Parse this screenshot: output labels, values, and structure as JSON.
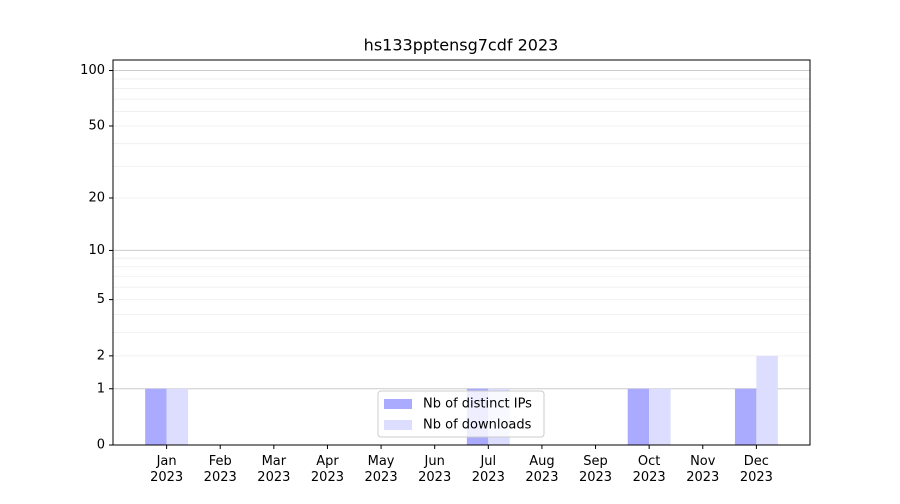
{
  "chart_data": {
    "type": "bar",
    "title": "hs133pptensg7cdf 2023",
    "categories": [
      "Jan\n2023",
      "Feb\n2023",
      "Mar\n2023",
      "Apr\n2023",
      "May\n2023",
      "Jun\n2023",
      "Jul\n2023",
      "Aug\n2023",
      "Sep\n2023",
      "Oct\n2023",
      "Nov\n2023",
      "Dec\n2023"
    ],
    "series": [
      {
        "name": "Nb of distinct IPs",
        "color": "#aaaaff",
        "values": [
          1,
          0,
          0,
          0,
          0,
          0,
          1,
          0,
          0,
          1,
          0,
          1
        ]
      },
      {
        "name": "Nb of downloads",
        "color": "#ddddff",
        "values": [
          1,
          0,
          0,
          0,
          0,
          0,
          1,
          0,
          0,
          1,
          0,
          2
        ]
      }
    ],
    "yscale": "log1p",
    "ylim": [
      0,
      114
    ],
    "yticks": [
      0,
      1,
      2,
      5,
      10,
      20,
      50,
      100
    ],
    "major_grid": [
      1,
      10,
      100
    ],
    "minor_grid": [
      2,
      3,
      4,
      5,
      6,
      7,
      8,
      9,
      20,
      30,
      40,
      50,
      60,
      70,
      80,
      90
    ],
    "legend": "lower center"
  }
}
